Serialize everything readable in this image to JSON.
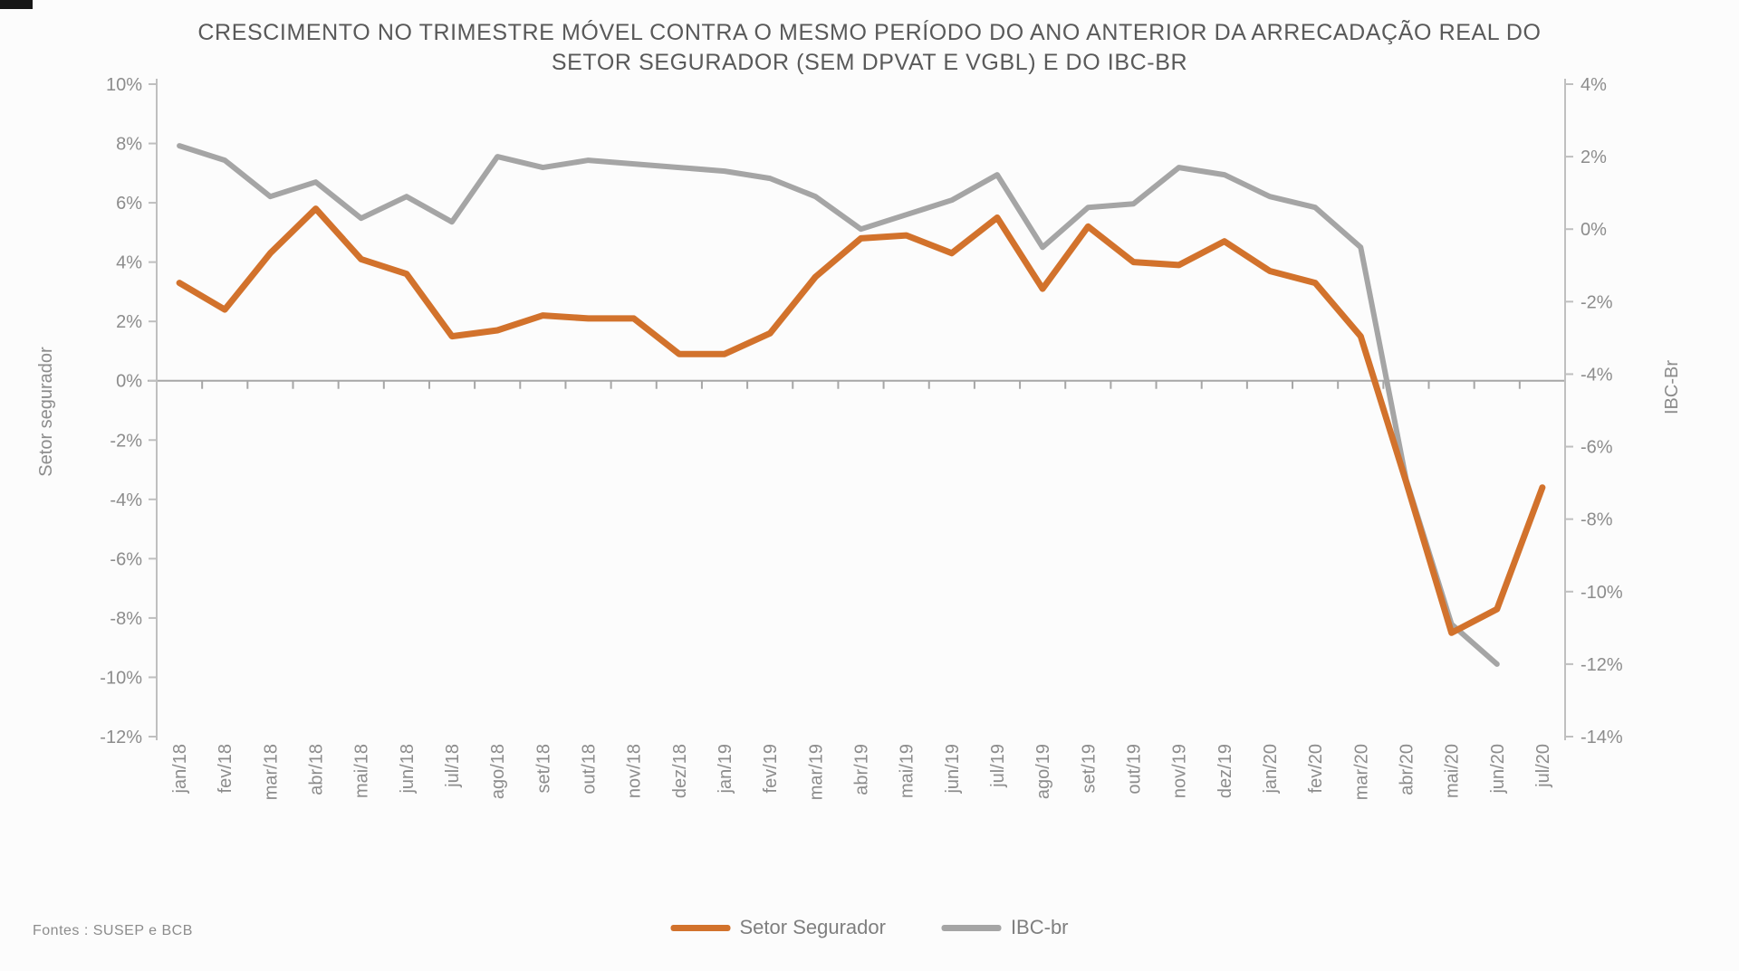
{
  "title": {
    "line1": "CRESCIMENTO NO TRIMESTRE MÓVEL CONTRA O MESMO PERÍODO DO ANO ANTERIOR DA ARRECADAÇÃO REAL DO",
    "line2": "SETOR SEGURADOR (SEM DPVAT E VGBL) E DO IBC-BR"
  },
  "source_note": "Fontes : SUSEP e BCB",
  "legend": [
    {
      "label": "Setor Segurador",
      "color": "#d2722c"
    },
    {
      "label": "IBC-br",
      "color": "#a5a5a5"
    }
  ],
  "chart_data": {
    "type": "line",
    "title": "CRESCIMENTO NO TRIMESTRE MÓVEL CONTRA O MESMO PERÍODO DO ANO ANTERIOR DA ARRECADAÇÃO REAL DO SETOR SEGURADOR (SEM DPVAT E VGBL) E DO IBC-BR",
    "grid": false,
    "legend_position": "bottom",
    "zero_line": true,
    "categories": [
      "jan/18",
      "fev/18",
      "mar/18",
      "abr/18",
      "mai/18",
      "jun/18",
      "jul/18",
      "ago/18",
      "set/18",
      "out/18",
      "nov/18",
      "dez/18",
      "jan/19",
      "fev/19",
      "mar/19",
      "abr/19",
      "mai/19",
      "jun/19",
      "jul/19",
      "ago/19",
      "set/19",
      "out/19",
      "nov/19",
      "dez/19",
      "jan/20",
      "fev/20",
      "mar/20",
      "abr/20",
      "mai/20",
      "jun/20",
      "jul/20"
    ],
    "series": [
      {
        "name": "Setor Segurador",
        "axis": "left",
        "color": "#d2722c",
        "values": [
          3.3,
          2.4,
          4.3,
          5.8,
          4.1,
          3.6,
          1.5,
          1.7,
          2.2,
          2.1,
          2.1,
          0.9,
          0.9,
          1.6,
          3.5,
          4.8,
          4.9,
          4.3,
          5.5,
          3.1,
          5.2,
          4.0,
          3.9,
          4.7,
          3.7,
          3.3,
          1.5,
          -3.4,
          -8.5,
          -7.7,
          -3.6
        ]
      },
      {
        "name": "IBC-br",
        "axis": "right",
        "color": "#a5a5a5",
        "values": [
          2.3,
          1.9,
          0.9,
          1.3,
          0.3,
          0.9,
          0.2,
          2.0,
          1.7,
          1.9,
          1.8,
          1.7,
          1.6,
          1.4,
          0.9,
          0.0,
          0.4,
          0.8,
          1.5,
          -0.5,
          0.6,
          0.7,
          1.7,
          1.5,
          0.9,
          0.6,
          -0.5,
          -6.9,
          -10.9,
          -12.0,
          null
        ]
      }
    ],
    "axes": {
      "left": {
        "label": "Setor segurador",
        "min": -12,
        "max": 10,
        "step": 2,
        "tick_labels": [
          "10%",
          "8%",
          "6%",
          "4%",
          "2%",
          "0%",
          "-2%",
          "-4%",
          "-6%",
          "-8%",
          "-10%",
          "-12%"
        ]
      },
      "right": {
        "label": "IBC-Br",
        "min": -14,
        "max": 4,
        "step": 2,
        "tick_labels": [
          "4%",
          "2%",
          "0%",
          "-2%",
          "-4%",
          "-6%",
          "-8%",
          "-10%",
          "-12%",
          "-14%"
        ]
      }
    }
  }
}
